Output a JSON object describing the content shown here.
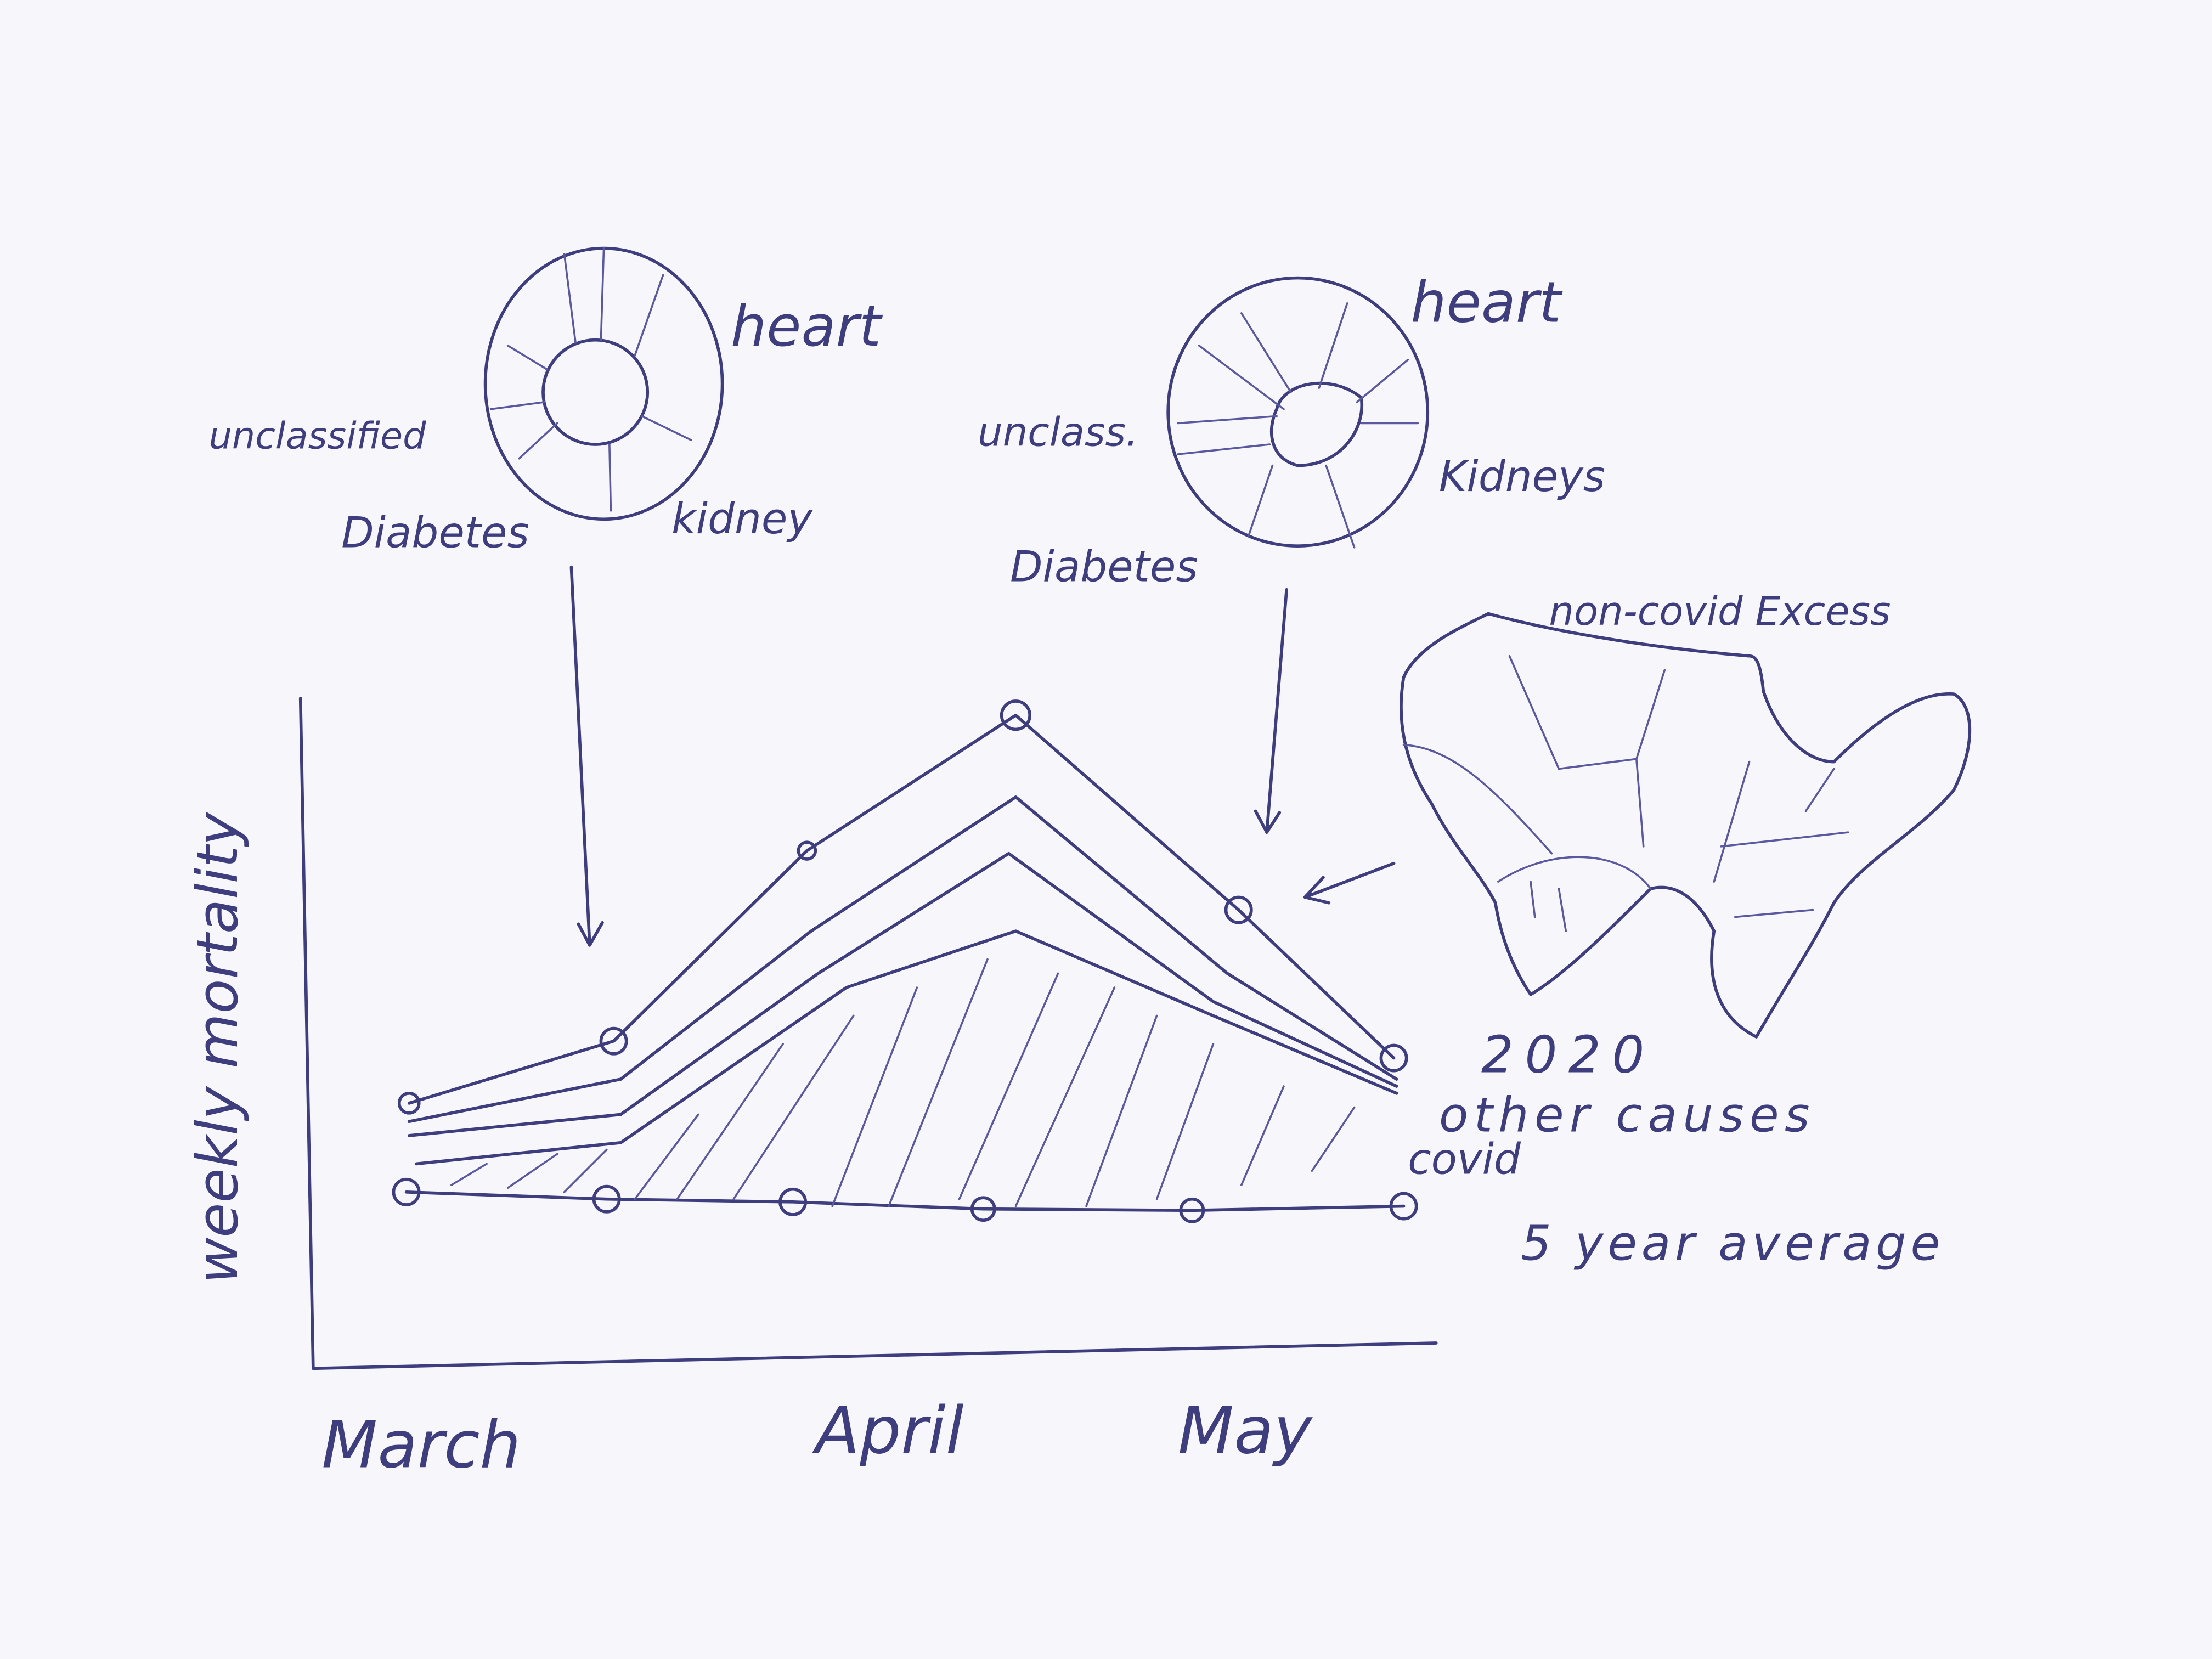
{
  "donut_left": {
    "labels": [
      "heart",
      "unclassified",
      "Diabetes",
      "kidney"
    ]
  },
  "donut_right": {
    "labels": [
      "heart",
      "unclass.",
      "Kidneys",
      "Diabetes"
    ]
  },
  "map_label": "non-covid Excess",
  "line_labels": [
    "2020",
    "other causes",
    "covid",
    "5 year average"
  ],
  "y_axis_label": "weekly mortality",
  "x_axis_labels": [
    "March",
    "April",
    "May"
  ]
}
